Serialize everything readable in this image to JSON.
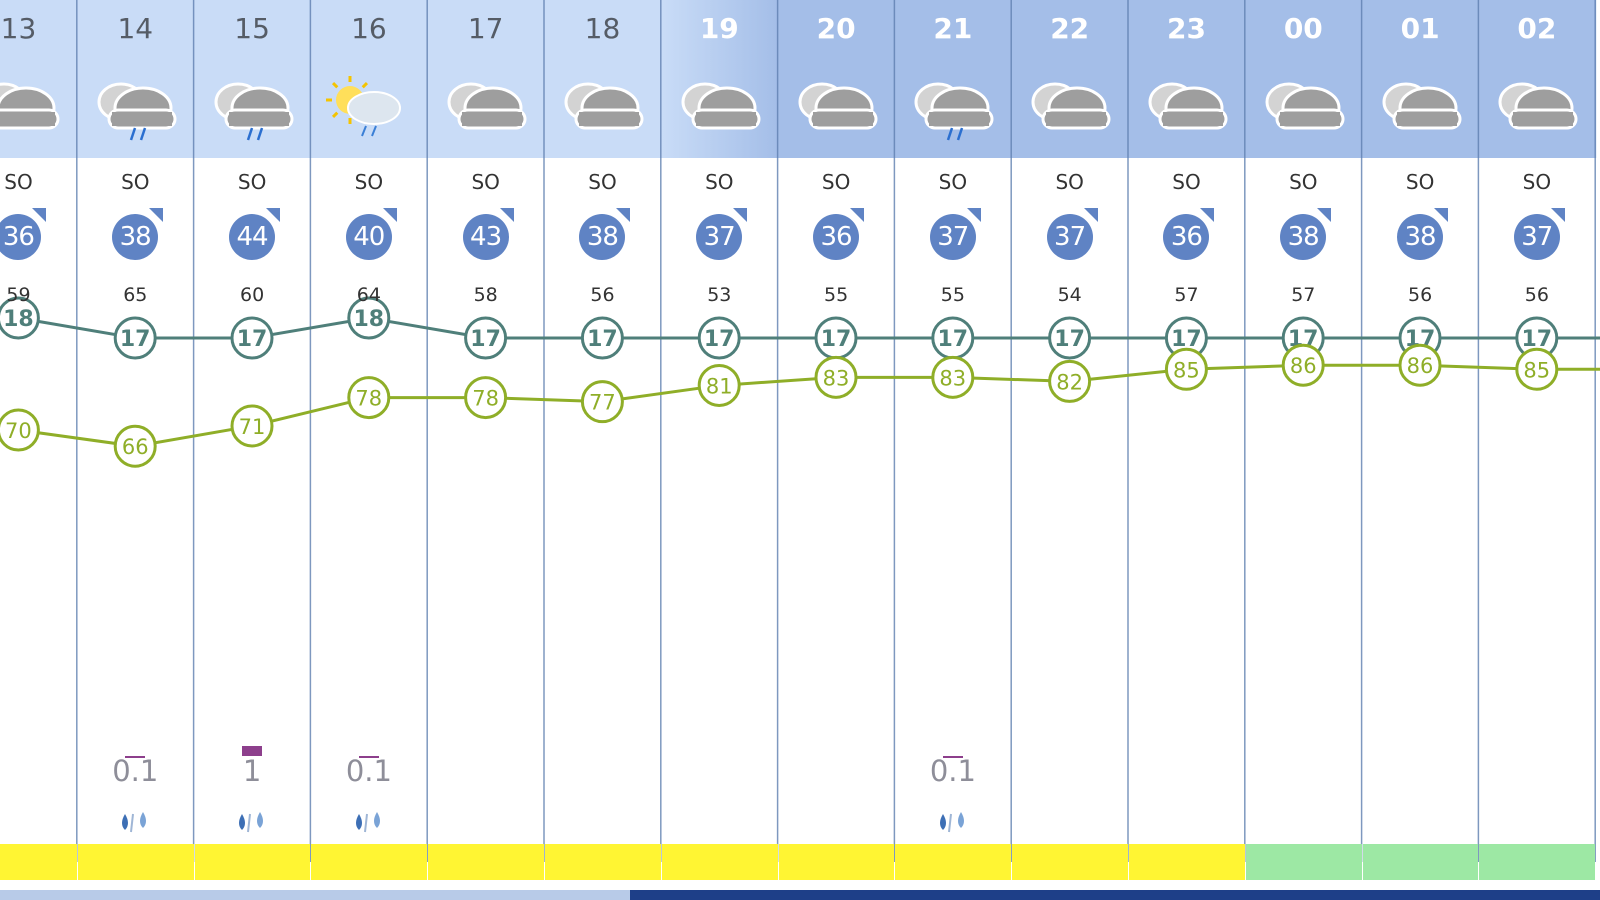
{
  "hours": [
    "13",
    "14",
    "15",
    "16",
    "17",
    "18",
    "19",
    "20",
    "21",
    "22",
    "23",
    "00",
    "01",
    "02"
  ],
  "weather_icons": [
    "cloud-icon",
    "rain-cloud-icon",
    "rain-cloud-icon",
    "sun-cloud-rain-icon",
    "cloud-icon",
    "cloud-icon",
    "cloud-icon",
    "cloud-icon",
    "rain-cloud-icon",
    "cloud-icon",
    "cloud-icon",
    "cloud-icon",
    "cloud-icon",
    "cloud-icon"
  ],
  "wind_direction": [
    "SO",
    "SO",
    "SO",
    "SO",
    "SO",
    "SO",
    "SO",
    "SO",
    "SO",
    "SO",
    "SO",
    "SO",
    "SO",
    "SO"
  ],
  "wind_speed": [
    "36",
    "38",
    "44",
    "40",
    "43",
    "38",
    "37",
    "36",
    "37",
    "37",
    "36",
    "38",
    "38",
    "37"
  ],
  "gusts": [
    "59",
    "65",
    "60",
    "64",
    "58",
    "56",
    "53",
    "55",
    "55",
    "54",
    "57",
    "57",
    "56",
    "56"
  ],
  "temperature": [
    18,
    17,
    17,
    18,
    17,
    17,
    17,
    17,
    17,
    17,
    17,
    17,
    17,
    17
  ],
  "humidity": [
    70,
    66,
    71,
    78,
    78,
    77,
    81,
    83,
    83,
    82,
    85,
    86,
    86,
    85
  ],
  "precipitation": [
    "",
    "0.1",
    "1",
    "0.1",
    "",
    "",
    "",
    "",
    "0.1",
    "",
    "",
    "",
    "",
    ""
  ],
  "precipitation_intensity": [
    0,
    1,
    2,
    1,
    0,
    0,
    0,
    0,
    1,
    0,
    0,
    0,
    0,
    0
  ],
  "strip_state": [
    "day",
    "day",
    "day",
    "day",
    "day",
    "day",
    "day",
    "day",
    "day",
    "day",
    "day",
    "night",
    "night",
    "night"
  ],
  "colors": {
    "header_light": "#c9dcf7",
    "header_dark": "#a4bee8",
    "grid_line": "#5f7fb0",
    "wind_badge": "#5f83c4",
    "temp_line": "#4f7f7a",
    "humidity_line": "#8fae28",
    "precip_bar": "#8d3f8c",
    "sun_strip": "#fff533",
    "night_strip": "#9de8a4",
    "bottom_light": "#b8cbe8",
    "bottom_dark": "#1e3f88"
  }
}
